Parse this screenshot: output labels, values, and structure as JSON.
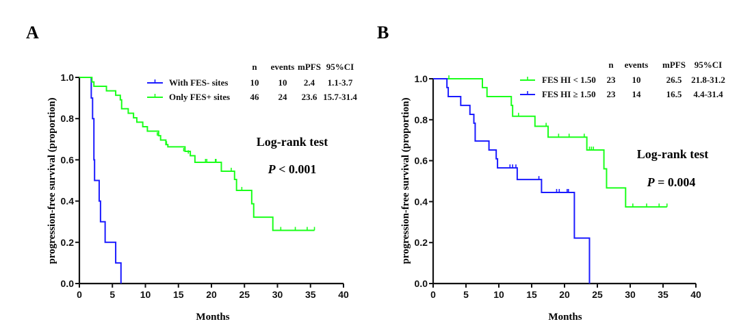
{
  "chart_data": [
    {
      "type": "line",
      "subtype": "kaplan-meier",
      "panel_label": "A",
      "title": "",
      "xlabel": "Months",
      "ylabel": "progression-free survival (proportion)",
      "xlim": [
        0,
        40
      ],
      "ylim": [
        0,
        1.0
      ],
      "xticks": [
        "0",
        "5",
        "10",
        "15",
        "20",
        "25",
        "30",
        "35",
        "40"
      ],
      "yticks": [
        "0.0",
        "0.2",
        "0.4",
        "0.6",
        "0.8",
        "1.0"
      ],
      "grid": false,
      "legend_position": "top-right",
      "legend_header": [
        "n",
        "events",
        "mPFS",
        "95%CI"
      ],
      "series": [
        {
          "name": "With FES- sites",
          "color": "#1a1aff",
          "n": "10",
          "events": "10",
          "mPFS": "2.4",
          "ci": "1.1-3.7",
          "steps": [
            [
              0,
              1.0
            ],
            [
              1.8,
              0.9
            ],
            [
              2.0,
              0.8
            ],
            [
              2.2,
              0.6
            ],
            [
              2.3,
              0.5
            ],
            [
              3.0,
              0.4
            ],
            [
              3.2,
              0.3
            ],
            [
              3.9,
              0.2
            ],
            [
              5.5,
              0.1
            ],
            [
              6.3,
              0.0
            ]
          ],
          "end": 6.3,
          "censored": []
        },
        {
          "name": "Only FES+ sites",
          "color": "#1aff1a",
          "n": "46",
          "events": "24",
          "mPFS": "23.6",
          "ci": "15.7-31.4",
          "steps": [
            [
              0,
              1.0
            ],
            [
              1.9,
              0.978
            ],
            [
              2.2,
              0.957
            ],
            [
              4.1,
              0.935
            ],
            [
              5.5,
              0.913
            ],
            [
              6.2,
              0.891
            ],
            [
              6.4,
              0.848
            ],
            [
              7.4,
              0.826
            ],
            [
              8.2,
              0.804
            ],
            [
              8.7,
              0.783
            ],
            [
              9.6,
              0.761
            ],
            [
              10.3,
              0.739
            ],
            [
              12.0,
              0.717
            ],
            [
              12.3,
              0.696
            ],
            [
              13.1,
              0.674
            ],
            [
              13.4,
              0.663
            ],
            [
              16.0,
              0.641
            ],
            [
              16.8,
              0.62
            ],
            [
              17.5,
              0.588
            ],
            [
              21.5,
              0.545
            ],
            [
              23.5,
              0.505
            ],
            [
              23.8,
              0.452
            ],
            [
              26.1,
              0.387
            ],
            [
              26.4,
              0.322
            ],
            [
              29.3,
              0.258
            ]
          ],
          "end": 35.6,
          "censored": [
            [
              11.8,
              0.717
            ],
            [
              13.2,
              0.674
            ],
            [
              15.8,
              0.641
            ],
            [
              16.5,
              0.63
            ],
            [
              19.1,
              0.588
            ],
            [
              19.3,
              0.588
            ],
            [
              20.6,
              0.588
            ],
            [
              20.7,
              0.588
            ],
            [
              23.0,
              0.545
            ],
            [
              24.6,
              0.452
            ],
            [
              30.5,
              0.258
            ],
            [
              32.7,
              0.258
            ],
            [
              34.5,
              0.258
            ],
            [
              35.6,
              0.258
            ]
          ]
        }
      ],
      "annotations": [
        "Log-rank test",
        "P < 0.001"
      ]
    },
    {
      "type": "line",
      "subtype": "kaplan-meier",
      "panel_label": "B",
      "title": "",
      "xlabel": "Months",
      "ylabel": "progression-free survival (proportion)",
      "xlim": [
        0,
        40
      ],
      "ylim": [
        0,
        1.0
      ],
      "xticks": [
        "0",
        "5",
        "10",
        "15",
        "20",
        "25",
        "30",
        "35",
        "40"
      ],
      "yticks": [
        "0.0",
        "0.2",
        "0.4",
        "0.6",
        "0.8",
        "1.0"
      ],
      "grid": false,
      "legend_position": "top-right",
      "legend_header": [
        "n",
        "events",
        "mPFS",
        "95%CI"
      ],
      "series": [
        {
          "name": "FES HI < 1.50",
          "color": "#1aff1a",
          "n": "23",
          "events": "10",
          "mPFS": "26.5",
          "ci": "21.8-31.2",
          "steps": [
            [
              0,
              1.0
            ],
            [
              7.5,
              0.957
            ],
            [
              8.2,
              0.913
            ],
            [
              11.9,
              0.87
            ],
            [
              12.1,
              0.817
            ],
            [
              15.5,
              0.768
            ],
            [
              17.5,
              0.715
            ],
            [
              23.4,
              0.652
            ],
            [
              26.0,
              0.56
            ],
            [
              26.4,
              0.467
            ],
            [
              29.3,
              0.374
            ]
          ],
          "end": 35.6,
          "censored": [
            [
              2.4,
              1.0
            ],
            [
              13.0,
              0.817
            ],
            [
              17.2,
              0.768
            ],
            [
              19.1,
              0.715
            ],
            [
              20.7,
              0.715
            ],
            [
              23.0,
              0.715
            ],
            [
              23.8,
              0.652
            ],
            [
              24.1,
              0.652
            ],
            [
              24.4,
              0.652
            ],
            [
              30.4,
              0.374
            ],
            [
              32.5,
              0.374
            ],
            [
              34.4,
              0.374
            ],
            [
              35.6,
              0.374
            ]
          ]
        },
        {
          "name": "FES HI ≥ 1.50",
          "color": "#1a1aff",
          "n": "23",
          "events": "14",
          "mPFS": "16.5",
          "ci": "4.4-31.4",
          "steps": [
            [
              0,
              1.0
            ],
            [
              2.1,
              0.957
            ],
            [
              2.3,
              0.913
            ],
            [
              4.2,
              0.87
            ],
            [
              5.6,
              0.826
            ],
            [
              6.2,
              0.783
            ],
            [
              6.4,
              0.696
            ],
            [
              8.5,
              0.652
            ],
            [
              9.6,
              0.609
            ],
            [
              9.8,
              0.565
            ],
            [
              12.8,
              0.508
            ],
            [
              16.5,
              0.445
            ],
            [
              21.5,
              0.222
            ],
            [
              23.8,
              0.0
            ]
          ],
          "end": 23.8,
          "censored": [
            [
              11.7,
              0.565
            ],
            [
              12.1,
              0.565
            ],
            [
              12.6,
              0.565
            ],
            [
              16.1,
              0.508
            ],
            [
              18.8,
              0.445
            ],
            [
              19.2,
              0.445
            ],
            [
              20.4,
              0.445
            ],
            [
              20.6,
              0.445
            ]
          ]
        }
      ],
      "annotations": [
        "Log-rank test",
        "P = 0.004"
      ]
    }
  ],
  "panels": [
    {
      "label": "A",
      "stat_title": "Log-rank test",
      "p_symbol": "P",
      "p_rest": " < 0.001"
    },
    {
      "label": "B",
      "stat_title": "Log-rank test",
      "p_symbol": "P",
      "p_rest": " = 0.004"
    }
  ]
}
